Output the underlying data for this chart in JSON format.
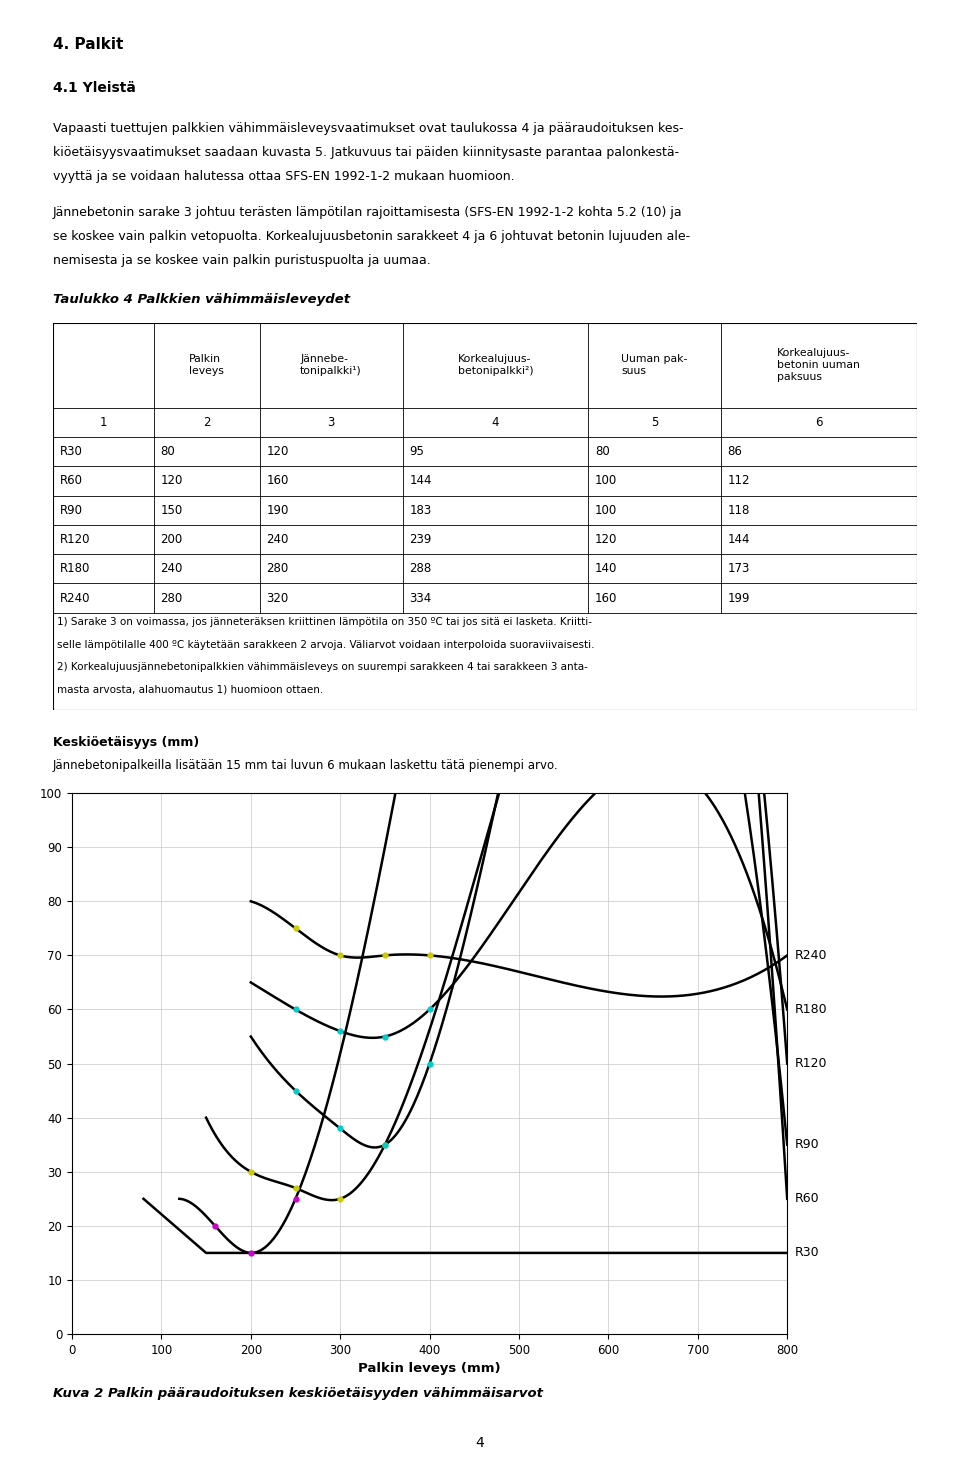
{
  "title_section": "4. Palkit",
  "subtitle": "4.1 Yleistä",
  "para1_lines": [
    "Vapaasti tuettujen palkkien vähimmäisleveysvaatimukset ovat taulukossa 4 ja pääraudoituksen kes-",
    "kiöetäisyysvaatimukset saadaan kuvasta 5. Jatkuvuus tai päiden kiinnitysaste parantaa palonkestä-",
    "vyyttä ja se voidaan halutessa ottaa SFS-EN 1992-1-2 mukaan huomioon."
  ],
  "para2_lines": [
    "Jännebetonin sarake 3 johtuu terästen lämpötilan rajoittamisesta (SFS-EN 1992-1-2 kohta 5.2 (10) ja",
    "se koskee vain palkin vetopuolta. Korkealujuusbetonin sarakkeet 4 ja 6 johtuvat betonin lujuuden ale-",
    "nemisesta ja se koskee vain palkin puristuspuolta ja uumaa."
  ],
  "table_title": "Taulukko 4 Palkkien vähimmäisleveydet",
  "table_headers": [
    "",
    "Palkin\nleveys",
    "Jännebe-\ntonipalkki¹)",
    "Korkealujuus-\nbetonipalkki²)",
    "Uuman pak-\nsuus",
    "Korkealujuus-\nbetonin uuman\npaksuus"
  ],
  "table_col_numbers": [
    "1",
    "2",
    "3",
    "4",
    "5",
    "6"
  ],
  "table_rows": [
    [
      "R30",
      "80",
      "120",
      "95",
      "80",
      "86"
    ],
    [
      "R60",
      "120",
      "160",
      "144",
      "100",
      "112"
    ],
    [
      "R90",
      "150",
      "190",
      "183",
      "100",
      "118"
    ],
    [
      "R120",
      "200",
      "240",
      "239",
      "120",
      "144"
    ],
    [
      "R180",
      "240",
      "280",
      "288",
      "140",
      "173"
    ],
    [
      "R240",
      "280",
      "320",
      "334",
      "160",
      "199"
    ]
  ],
  "table_footnote_lines": [
    "1) Sarake 3 on voimassa, jos jänneteräksen kriittinen lämpötila on 350 ºC tai jos sitä ei lasketa. Kriitti-",
    "selle lämpötilalle 400 ºC käytetään sarakkeen 2 arvoja. Väliarvot voidaan interpoloida suoraviivaisesti.",
    "2) Korkealujuusjännebetonipalkkien vähimmäisleveys on suurempi sarakkeen 4 tai sarakkeen 3 anta-",
    "masta arvosta, alahuomautus 1) huomioon ottaen."
  ],
  "chart_ylabel_bold": "Keskiöetäisyys (mm)",
  "chart_subtitle": "Jännebetonipalkeilla lisätään 15 mm tai luvun 6 mukaan laskettu tätä pienempi arvo.",
  "chart_xlabel": "Palkin leveys (mm)",
  "chart_caption": "Kuva 2 Palkin pääraudoituksen keskiöetäisyyden vähimmäisarvot",
  "page_number": "4",
  "curves": {
    "R30": {
      "x": [
        80,
        150,
        800
      ],
      "y": [
        25,
        15,
        15
      ]
    },
    "R60": {
      "x": [
        120,
        160,
        200,
        250,
        800
      ],
      "y": [
        25,
        20,
        15,
        25,
        25
      ]
    },
    "R90": {
      "x": [
        150,
        200,
        250,
        300,
        350,
        800
      ],
      "y": [
        40,
        30,
        27,
        25,
        35,
        35
      ]
    },
    "R120": {
      "x": [
        200,
        250,
        300,
        350,
        400,
        800
      ],
      "y": [
        55,
        45,
        38,
        35,
        50,
        50
      ]
    },
    "R180": {
      "x": [
        200,
        250,
        300,
        350,
        400,
        800
      ],
      "y": [
        65,
        60,
        56,
        55,
        60,
        60
      ]
    },
    "R240": {
      "x": [
        200,
        250,
        300,
        350,
        400,
        800
      ],
      "y": [
        80,
        75,
        70,
        70,
        70,
        70
      ]
    }
  },
  "marker_colors": {
    "R240": "#cccc00",
    "R180": "#00cccc",
    "R120": "#00cccc",
    "R90": "#cccc00",
    "R60": "#cc00cc",
    "R30": "#000000"
  },
  "chart_xlim": [
    0,
    800
  ],
  "chart_ylim": [
    0,
    100
  ],
  "chart_xticks": [
    0,
    100,
    200,
    300,
    400,
    500,
    600,
    700,
    800
  ],
  "chart_yticks": [
    0,
    10,
    20,
    30,
    40,
    50,
    60,
    70,
    80,
    90,
    100
  ]
}
